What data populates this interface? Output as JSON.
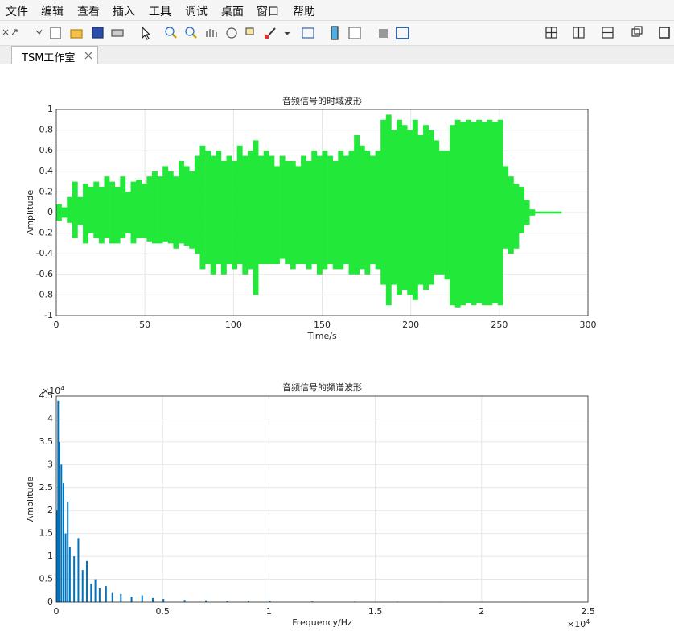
{
  "menu": [
    "文件",
    "编辑",
    "查看",
    "插入",
    "工具",
    "调试",
    "桌面",
    "窗口",
    "帮助"
  ],
  "tab": "TSM工作室",
  "chart_data": [
    {
      "type": "area",
      "title": "音频信号的时域波形",
      "xlabel": "Time/s",
      "ylabel": "Amplitude",
      "x": [
        0,
        3,
        6,
        9,
        12,
        15,
        18,
        21,
        24,
        27,
        30,
        33,
        36,
        39,
        42,
        45,
        48,
        51,
        54,
        57,
        60,
        63,
        66,
        69,
        72,
        75,
        78,
        81,
        84,
        87,
        90,
        93,
        96,
        99,
        102,
        105,
        108,
        111,
        114,
        117,
        120,
        123,
        126,
        129,
        132,
        135,
        138,
        141,
        144,
        147,
        150,
        153,
        156,
        159,
        162,
        165,
        168,
        171,
        174,
        177,
        180,
        183,
        186,
        189,
        192,
        195,
        198,
        201,
        204,
        207,
        210,
        213,
        216,
        219,
        222,
        225,
        228,
        231,
        234,
        237,
        240,
        243,
        246,
        249,
        252,
        255,
        258,
        261,
        264,
        267,
        270,
        273,
        276,
        279,
        282
      ],
      "series": [
        {
          "color": "#22e83a",
          "values": [
            0.08,
            0.05,
            0.15,
            0.3,
            0.15,
            0.28,
            0.25,
            0.3,
            0.25,
            0.35,
            0.3,
            0.25,
            0.35,
            0.2,
            0.3,
            0.32,
            0.28,
            0.35,
            0.4,
            0.35,
            0.45,
            0.4,
            0.35,
            0.5,
            0.45,
            0.4,
            0.55,
            0.65,
            0.6,
            0.55,
            0.6,
            0.5,
            0.55,
            0.5,
            0.65,
            0.55,
            0.6,
            0.7,
            0.55,
            0.6,
            0.55,
            0.45,
            0.55,
            0.5,
            0.5,
            0.45,
            0.55,
            0.5,
            0.6,
            0.55,
            0.6,
            0.55,
            0.5,
            0.6,
            0.55,
            0.6,
            0.75,
            0.65,
            0.6,
            0.55,
            0.6,
            0.9,
            0.95,
            0.8,
            0.9,
            0.85,
            0.8,
            0.9,
            0.75,
            0.85,
            0.8,
            0.7,
            0.6,
            0.6,
            0.85,
            0.9,
            0.88,
            0.9,
            0.88,
            0.9,
            0.88,
            0.9,
            0.88,
            0.9,
            0.45,
            0.35,
            0.28,
            0.25,
            0.12,
            0.03,
            0.01,
            0.01,
            0.01,
            0.01,
            0.01
          ]
        },
        {
          "color": "#22e83a",
          "values": [
            -0.08,
            -0.05,
            -0.1,
            -0.25,
            -0.12,
            -0.3,
            -0.2,
            -0.25,
            -0.3,
            -0.25,
            -0.3,
            -0.3,
            -0.25,
            -0.2,
            -0.3,
            -0.25,
            -0.25,
            -0.28,
            -0.3,
            -0.3,
            -0.28,
            -0.3,
            -0.35,
            -0.3,
            -0.32,
            -0.35,
            -0.4,
            -0.55,
            -0.5,
            -0.6,
            -0.5,
            -0.6,
            -0.5,
            -0.55,
            -0.5,
            -0.6,
            -0.55,
            -0.8,
            -0.5,
            -0.5,
            -0.5,
            -0.5,
            -0.45,
            -0.5,
            -0.55,
            -0.5,
            -0.5,
            -0.55,
            -0.5,
            -0.6,
            -0.55,
            -0.5,
            -0.55,
            -0.55,
            -0.5,
            -0.6,
            -0.6,
            -0.55,
            -0.6,
            -0.5,
            -0.55,
            -0.7,
            -0.9,
            -0.7,
            -0.8,
            -0.75,
            -0.8,
            -0.85,
            -0.7,
            -0.75,
            -0.7,
            -0.6,
            -0.6,
            -0.65,
            -0.9,
            -0.92,
            -0.9,
            -0.88,
            -0.9,
            -0.88,
            -0.9,
            -0.9,
            -0.88,
            -0.9,
            -0.35,
            -0.4,
            -0.35,
            -0.2,
            -0.12,
            -0.03,
            -0.01,
            -0.01,
            -0.01,
            -0.01,
            -0.01
          ]
        }
      ],
      "xlim": [
        0,
        300
      ],
      "xticks": [
        0,
        50,
        100,
        150,
        200,
        250,
        300
      ],
      "ylim": [
        -1,
        1
      ],
      "yticks": [
        -1,
        -0.8,
        -0.6,
        -0.4,
        -0.2,
        0,
        0.2,
        0.4,
        0.6,
        0.8,
        1
      ],
      "grid": true
    },
    {
      "type": "bar",
      "title": "音频信号的频谱波形",
      "xlabel": "Frequency/Hz",
      "ylabel": "Amplitude",
      "x": [
        0,
        50,
        100,
        200,
        300,
        400,
        500,
        600,
        800,
        1000,
        1200,
        1400,
        1600,
        1800,
        2000,
        2300,
        2600,
        3000,
        3500,
        4000,
        4500,
        5000,
        6000,
        7000,
        8000,
        9000,
        10000,
        12000,
        14000,
        16000,
        18000,
        20000,
        22000,
        24000
      ],
      "values": [
        20000,
        44000,
        35000,
        30000,
        26000,
        15000,
        22000,
        12000,
        10000,
        14000,
        7000,
        9000,
        4000,
        5000,
        3000,
        3500,
        2000,
        1800,
        1200,
        1500,
        900,
        700,
        500,
        400,
        300,
        250,
        300,
        150,
        120,
        100,
        80,
        60,
        40,
        20
      ],
      "color": "#0072bd",
      "xlim": [
        0,
        25000
      ],
      "xticks": [
        {
          "value": 0,
          "label": "0"
        },
        {
          "value": 5000,
          "label": "0.5"
        },
        {
          "value": 10000,
          "label": "1"
        },
        {
          "value": 15000,
          "label": "1.5"
        },
        {
          "value": 20000,
          "label": "2"
        },
        {
          "value": 25000,
          "label": "2.5"
        }
      ],
      "x_multiplier": "×10",
      "x_multiplier_exponent": "4",
      "ylim": [
        0,
        45000
      ],
      "yticks": [
        {
          "value": 0,
          "label": "0"
        },
        {
          "value": 5000,
          "label": "0.5"
        },
        {
          "value": 10000,
          "label": "1"
        },
        {
          "value": 15000,
          "label": "1.5"
        },
        {
          "value": 20000,
          "label": "2"
        },
        {
          "value": 25000,
          "label": "2.5"
        },
        {
          "value": 30000,
          "label": "3"
        },
        {
          "value": 35000,
          "label": "3.5"
        },
        {
          "value": 40000,
          "label": "4"
        },
        {
          "value": 45000,
          "label": "4.5"
        }
      ],
      "y_multiplier": "×10",
      "y_multiplier_exponent": "4",
      "grid": true
    }
  ]
}
